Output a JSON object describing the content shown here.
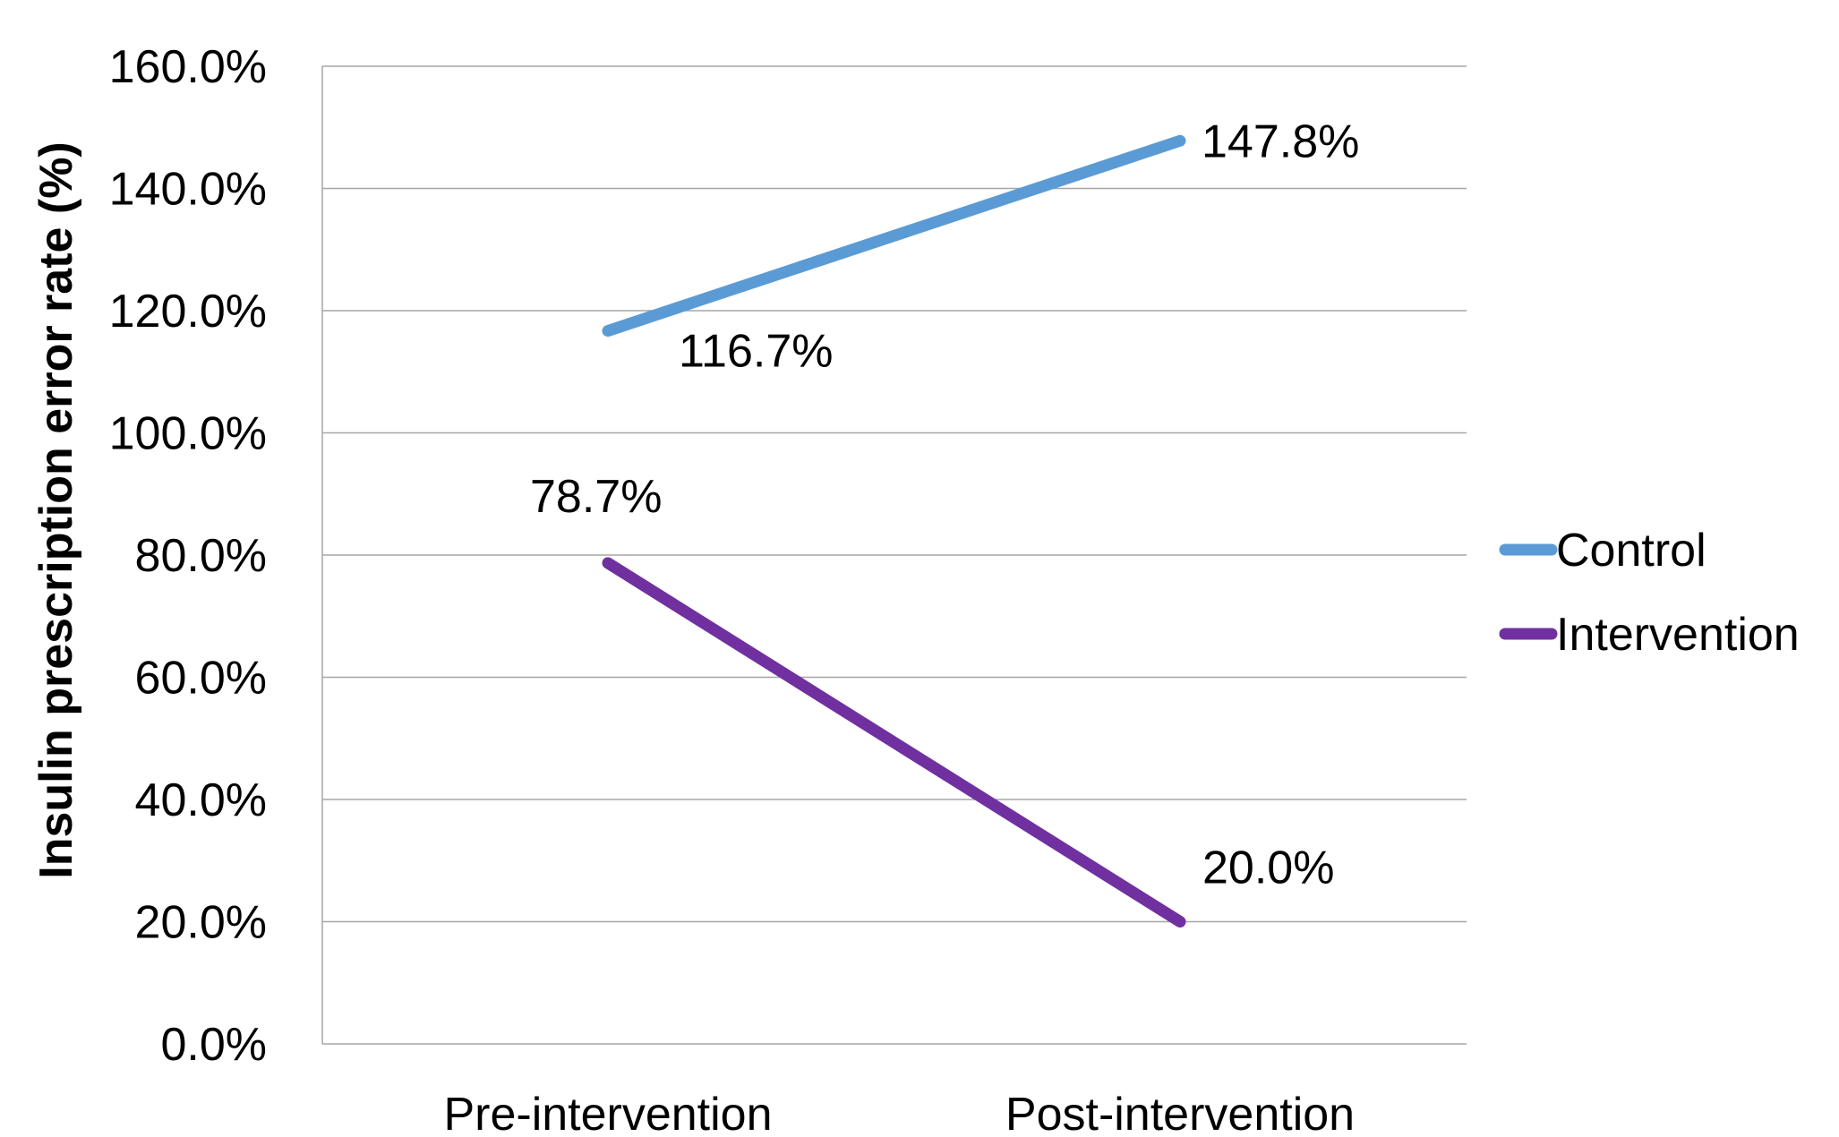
{
  "chart_data": {
    "type": "line",
    "title": "",
    "xlabel": "",
    "ylabel": "Insulin prescription error rate (%)",
    "categories": [
      "Pre-intervention",
      "Post-intervention"
    ],
    "ylim": [
      0,
      160
    ],
    "yticks": [
      0,
      20,
      40,
      60,
      80,
      100,
      120,
      140,
      160
    ],
    "ytick_labels": [
      "0.0%",
      "20.0%",
      "40.0%",
      "60.0%",
      "80.0%",
      "100.0%",
      "120.0%",
      "140.0%",
      "160.0%"
    ],
    "grid": true,
    "legend_position": "right",
    "series": [
      {
        "name": "Control",
        "color": "#5b9bd5",
        "values": [
          116.7,
          147.8
        ],
        "labels": [
          "116.7%",
          "147.8%"
        ]
      },
      {
        "name": "Intervention",
        "color": "#7030a0",
        "values": [
          78.7,
          20.0
        ],
        "labels": [
          "78.7%",
          "20.0%"
        ]
      }
    ]
  }
}
